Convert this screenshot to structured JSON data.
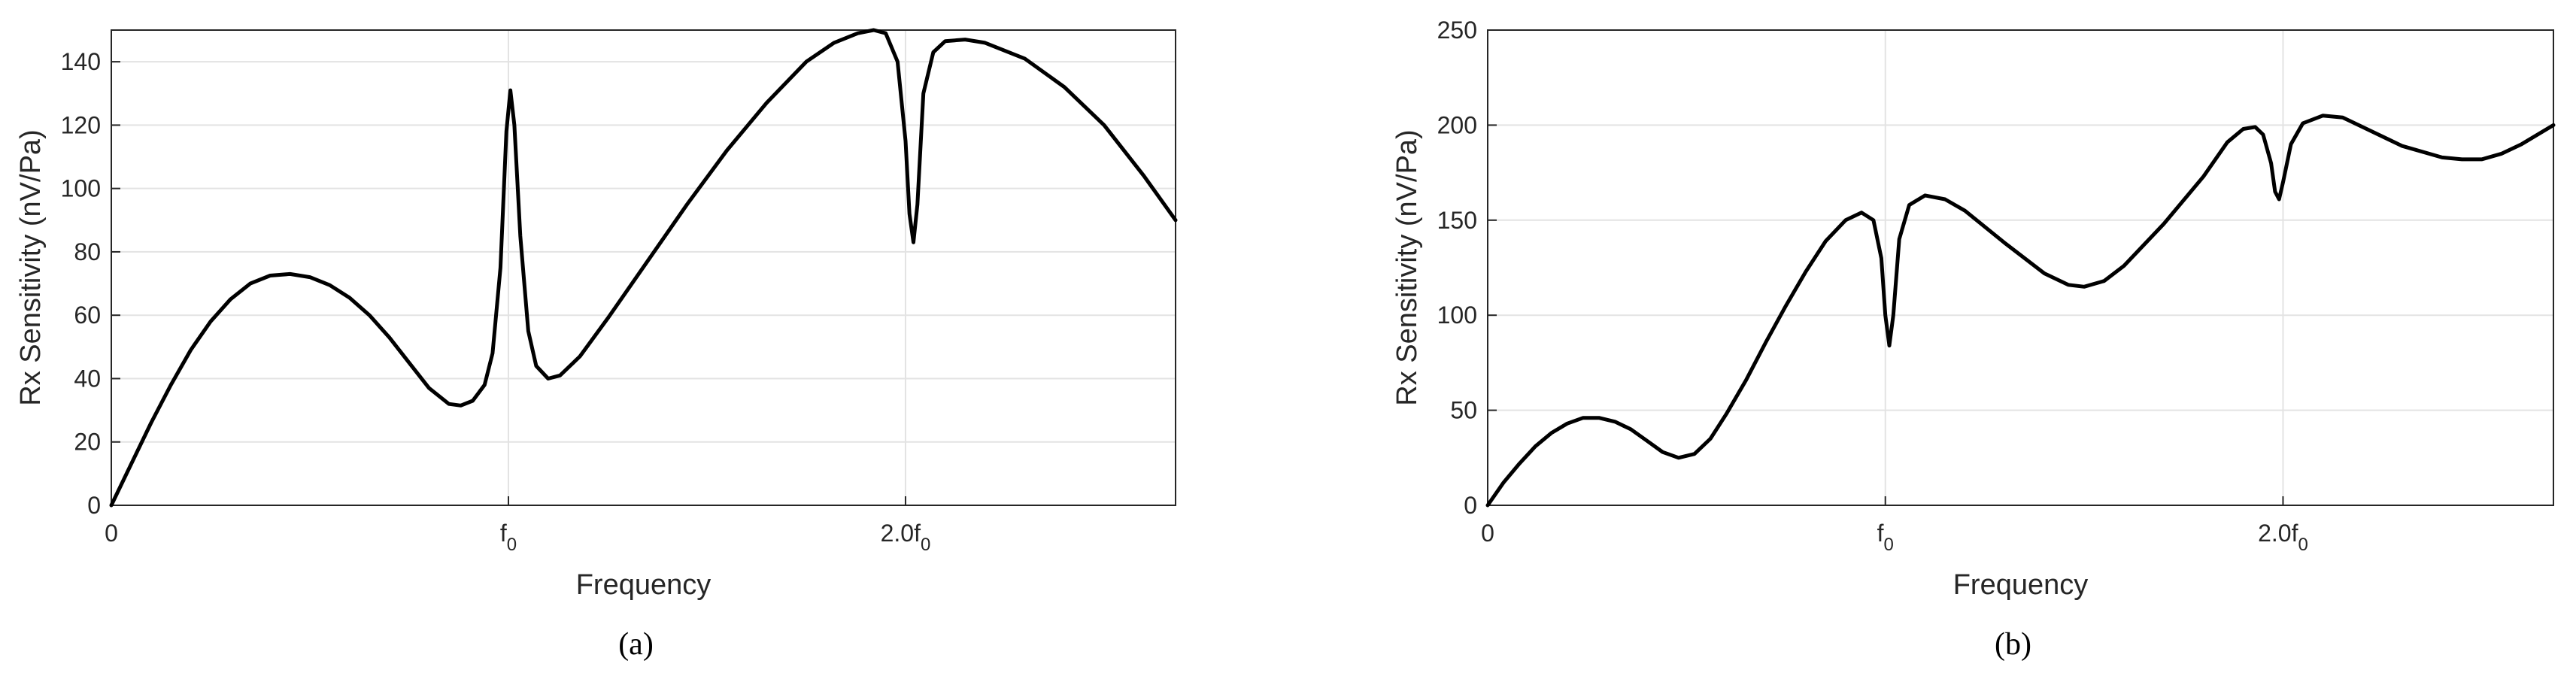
{
  "chart_data": [
    {
      "type": "line",
      "panel_label": "(a)",
      "xlabel": "Frequency",
      "ylabel": "Rx Sensitivity (nV/Pa)",
      "xlim": [
        0,
        2.68
      ],
      "ylim": [
        0,
        150
      ],
      "grid": true,
      "x_ticks": [
        {
          "value": 0,
          "label": "0",
          "sub": ""
        },
        {
          "value": 1.0,
          "label": "f",
          "sub": "0"
        },
        {
          "value": 2.0,
          "label": "2.0f",
          "sub": "0"
        }
      ],
      "y_ticks": [
        0,
        20,
        40,
        60,
        80,
        100,
        120,
        140
      ],
      "series": [
        {
          "color": "#000000",
          "points": [
            [
              0,
              0
            ],
            [
              0.05,
              13
            ],
            [
              0.1,
              26
            ],
            [
              0.15,
              38
            ],
            [
              0.2,
              49
            ],
            [
              0.25,
              58
            ],
            [
              0.3,
              65
            ],
            [
              0.35,
              70
            ],
            [
              0.4,
              72.5
            ],
            [
              0.45,
              73
            ],
            [
              0.5,
              72
            ],
            [
              0.55,
              69.5
            ],
            [
              0.6,
              65.5
            ],
            [
              0.65,
              60
            ],
            [
              0.7,
              53
            ],
            [
              0.75,
              45
            ],
            [
              0.8,
              37
            ],
            [
              0.85,
              32
            ],
            [
              0.88,
              31.5
            ],
            [
              0.91,
              33
            ],
            [
              0.94,
              38
            ],
            [
              0.96,
              48
            ],
            [
              0.98,
              75
            ],
            [
              0.995,
              118
            ],
            [
              1.005,
              131
            ],
            [
              1.015,
              120
            ],
            [
              1.03,
              85
            ],
            [
              1.05,
              55
            ],
            [
              1.07,
              44
            ],
            [
              1.1,
              40
            ],
            [
              1.13,
              41
            ],
            [
              1.18,
              47
            ],
            [
              1.25,
              59
            ],
            [
              1.35,
              77
            ],
            [
              1.45,
              95
            ],
            [
              1.55,
              112
            ],
            [
              1.65,
              127
            ],
            [
              1.75,
              140
            ],
            [
              1.82,
              146
            ],
            [
              1.88,
              149
            ],
            [
              1.92,
              150
            ],
            [
              1.95,
              149
            ],
            [
              1.98,
              140
            ],
            [
              2.0,
              115
            ],
            [
              2.01,
              92
            ],
            [
              2.02,
              83
            ],
            [
              2.03,
              95
            ],
            [
              2.045,
              130
            ],
            [
              2.07,
              143
            ],
            [
              2.1,
              146.5
            ],
            [
              2.15,
              147
            ],
            [
              2.2,
              146
            ],
            [
              2.3,
              141
            ],
            [
              2.4,
              132
            ],
            [
              2.5,
              120
            ],
            [
              2.6,
              104
            ],
            [
              2.68,
              90
            ]
          ]
        }
      ]
    },
    {
      "type": "line",
      "panel_label": "(b)",
      "xlabel": "Frequency",
      "ylabel": "Rx Sensitivity (nV/Pa)",
      "xlim": [
        0,
        2.68
      ],
      "ylim": [
        0,
        250
      ],
      "grid": true,
      "x_ticks": [
        {
          "value": 0,
          "label": "0",
          "sub": ""
        },
        {
          "value": 1.0,
          "label": "f",
          "sub": "0"
        },
        {
          "value": 2.0,
          "label": "2.0f",
          "sub": "0"
        }
      ],
      "y_ticks": [
        0,
        50,
        100,
        150,
        200,
        250
      ],
      "series": [
        {
          "color": "#000000",
          "points": [
            [
              0,
              0
            ],
            [
              0.04,
              12
            ],
            [
              0.08,
              22
            ],
            [
              0.12,
              31
            ],
            [
              0.16,
              38
            ],
            [
              0.2,
              43
            ],
            [
              0.24,
              46
            ],
            [
              0.28,
              46
            ],
            [
              0.32,
              44
            ],
            [
              0.36,
              40
            ],
            [
              0.4,
              34
            ],
            [
              0.44,
              28
            ],
            [
              0.48,
              25
            ],
            [
              0.52,
              27
            ],
            [
              0.56,
              35
            ],
            [
              0.6,
              48
            ],
            [
              0.65,
              66
            ],
            [
              0.7,
              86
            ],
            [
              0.75,
              105
            ],
            [
              0.8,
              123
            ],
            [
              0.85,
              139
            ],
            [
              0.9,
              150
            ],
            [
              0.94,
              154
            ],
            [
              0.97,
              150
            ],
            [
              0.99,
              130
            ],
            [
              1.0,
              100
            ],
            [
              1.01,
              84
            ],
            [
              1.02,
              100
            ],
            [
              1.035,
              140
            ],
            [
              1.06,
              158
            ],
            [
              1.1,
              163
            ],
            [
              1.15,
              161
            ],
            [
              1.2,
              155
            ],
            [
              1.3,
              138
            ],
            [
              1.4,
              122
            ],
            [
              1.46,
              116
            ],
            [
              1.5,
              115
            ],
            [
              1.55,
              118
            ],
            [
              1.6,
              126
            ],
            [
              1.7,
              148
            ],
            [
              1.8,
              173
            ],
            [
              1.86,
              191
            ],
            [
              1.9,
              198
            ],
            [
              1.93,
              199
            ],
            [
              1.95,
              195
            ],
            [
              1.97,
              180
            ],
            [
              1.98,
              165
            ],
            [
              1.99,
              161
            ],
            [
              2.0,
              170
            ],
            [
              2.02,
              190
            ],
            [
              2.05,
              201
            ],
            [
              2.1,
              205
            ],
            [
              2.15,
              204
            ],
            [
              2.2,
              199
            ],
            [
              2.3,
              189
            ],
            [
              2.4,
              183
            ],
            [
              2.45,
              182
            ],
            [
              2.5,
              182
            ],
            [
              2.55,
              185
            ],
            [
              2.6,
              190
            ],
            [
              2.68,
              200
            ]
          ]
        }
      ]
    }
  ]
}
